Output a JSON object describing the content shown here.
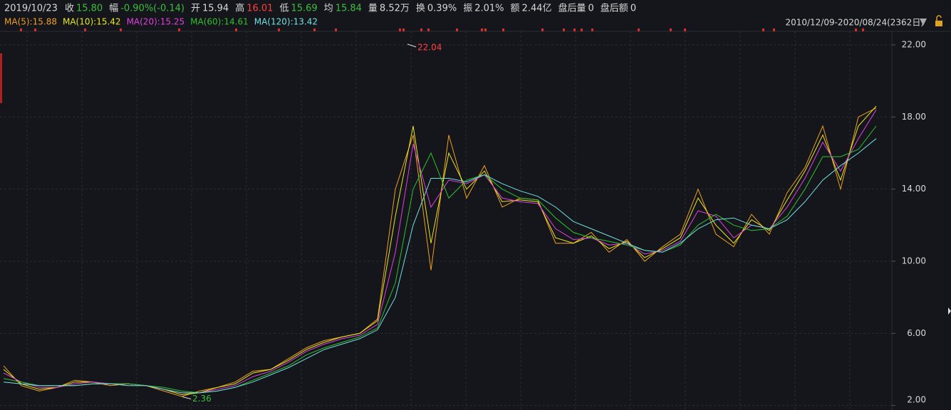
{
  "header": {
    "date": "2019/10/23",
    "fields": [
      {
        "label": "收",
        "value": "15.80",
        "color": "#3cbf3c"
      },
      {
        "label": "幅",
        "value": "-0.90%(-0.14)",
        "color": "#3cbf3c"
      },
      {
        "label": "开",
        "value": "15.94",
        "color": "#d8d8d8"
      },
      {
        "label": "高",
        "value": "16.01",
        "color": "#ff4040"
      },
      {
        "label": "低",
        "value": "15.69",
        "color": "#3cbf3c"
      },
      {
        "label": "均",
        "value": "15.84",
        "color": "#3cbf3c"
      },
      {
        "label": "量",
        "value": "8.52万",
        "color": "#d8d8d8"
      },
      {
        "label": "换",
        "value": "0.39%",
        "color": "#d8d8d8"
      },
      {
        "label": "振",
        "value": "2.01%",
        "color": "#d8d8d8"
      },
      {
        "label": "额",
        "value": "2.44亿",
        "color": "#d8d8d8"
      },
      {
        "label": "盘后量",
        "value": "0",
        "color": "#d8d8d8"
      },
      {
        "label": "盘后额",
        "value": "0",
        "color": "#d8d8d8"
      }
    ],
    "range": "2010/12/09-2020/08/24(2362日)"
  },
  "chart_data": {
    "type": "line",
    "ylim": [
      1.75,
      22.75
    ],
    "yticks": [
      {
        "value": 2,
        "label": "2.00"
      },
      {
        "value": 6,
        "label": "6.00"
      },
      {
        "value": 10,
        "label": "10.00"
      },
      {
        "value": 14,
        "label": "14.00"
      },
      {
        "value": 18,
        "label": "18.00"
      },
      {
        "value": 22,
        "label": "22.00"
      }
    ],
    "high": 22.04,
    "low": 2.36,
    "series": [
      {
        "name": "MA(5):15.88",
        "color": "#f0a020",
        "values": [
          4.2,
          3.1,
          2.8,
          3.0,
          3.4,
          3.3,
          3.1,
          3.2,
          3.1,
          2.8,
          2.5,
          2.8,
          3.0,
          3.3,
          3.9,
          4.0,
          4.6,
          5.2,
          5.6,
          5.8,
          6.0,
          6.8,
          14.0,
          17.0,
          9.5,
          17.0,
          13.5,
          15.3,
          13.0,
          13.5,
          13.4,
          11.0,
          11.0,
          11.6,
          10.5,
          11.2,
          10.0,
          10.8,
          11.5,
          14.0,
          11.5,
          10.8,
          12.6,
          11.5,
          13.8,
          15.2,
          17.5,
          14.0,
          18.0,
          18.5
        ]
      },
      {
        "name": "MA(10):15.42",
        "color": "#e8e820",
        "values": [
          4.0,
          3.2,
          2.9,
          3.0,
          3.3,
          3.3,
          3.2,
          3.2,
          3.1,
          2.9,
          2.6,
          2.7,
          3.0,
          3.2,
          3.8,
          4.0,
          4.5,
          5.1,
          5.5,
          5.8,
          6.0,
          6.7,
          12.5,
          17.5,
          11.0,
          16.0,
          14.0,
          15.0,
          13.3,
          13.4,
          13.3,
          11.3,
          11.0,
          11.4,
          10.7,
          11.1,
          10.2,
          10.7,
          11.3,
          13.5,
          12.0,
          11.0,
          12.3,
          11.7,
          13.4,
          15.0,
          17.0,
          14.5,
          17.5,
          18.6
        ]
      },
      {
        "name": "MA(20):15.25",
        "color": "#e040e0",
        "values": [
          3.8,
          3.3,
          3.0,
          3.0,
          3.2,
          3.3,
          3.2,
          3.2,
          3.1,
          2.9,
          2.7,
          2.7,
          2.9,
          3.1,
          3.6,
          3.9,
          4.4,
          5.0,
          5.4,
          5.7,
          5.9,
          6.5,
          10.5,
          16.5,
          13.0,
          14.5,
          14.3,
          14.8,
          13.5,
          13.3,
          13.2,
          11.8,
          11.2,
          11.3,
          10.9,
          11.0,
          10.4,
          10.6,
          11.1,
          12.8,
          12.5,
          11.3,
          12.0,
          11.8,
          13.0,
          14.6,
          16.6,
          15.0,
          16.8,
          18.4
        ]
      },
      {
        "name": "MA(60):14.61",
        "color": "#30c030",
        "values": [
          3.5,
          3.3,
          3.1,
          3.1,
          3.1,
          3.2,
          3.2,
          3.2,
          3.1,
          3.0,
          2.8,
          2.7,
          2.8,
          3.0,
          3.4,
          3.8,
          4.2,
          4.8,
          5.2,
          5.5,
          5.8,
          6.3,
          8.8,
          14.0,
          16.0,
          13.5,
          14.5,
          14.8,
          14.0,
          13.5,
          13.4,
          12.4,
          11.6,
          11.3,
          11.1,
          10.9,
          10.6,
          10.5,
          10.9,
          12.0,
          12.6,
          12.0,
          11.7,
          11.8,
          12.5,
          14.0,
          15.8,
          15.8,
          16.2,
          17.5
        ]
      },
      {
        "name": "MA(120):13.42",
        "color": "#70e0e0",
        "values": [
          3.3,
          3.2,
          3.1,
          3.1,
          3.1,
          3.2,
          3.2,
          3.1,
          3.1,
          2.9,
          2.7,
          2.7,
          2.8,
          3.0,
          3.3,
          3.7,
          4.1,
          4.6,
          5.1,
          5.4,
          5.7,
          6.2,
          8.0,
          12.0,
          14.6,
          14.6,
          14.4,
          14.8,
          14.3,
          13.9,
          13.6,
          13.0,
          12.2,
          11.8,
          11.4,
          11.0,
          10.6,
          10.5,
          11.0,
          11.8,
          12.3,
          12.4,
          12.0,
          11.8,
          12.3,
          13.3,
          14.5,
          15.3,
          16.0,
          16.8
        ]
      }
    ]
  }
}
